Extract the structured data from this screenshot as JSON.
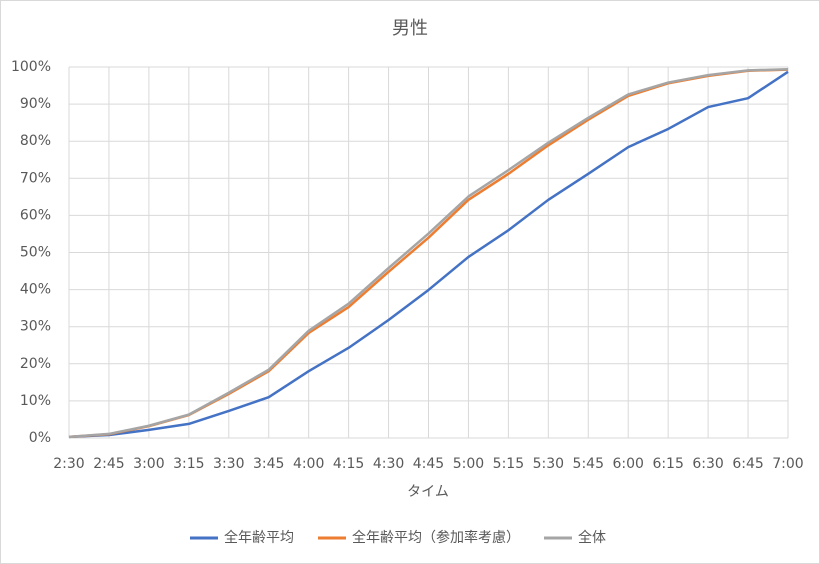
{
  "chart_data": {
    "type": "line",
    "title": "男性",
    "x_label": "タイム",
    "categories": [
      "2:30",
      "2:45",
      "3:00",
      "3:15",
      "3:30",
      "3:45",
      "4:00",
      "4:15",
      "4:30",
      "4:45",
      "5:00",
      "5:15",
      "5:30",
      "5:45",
      "6:00",
      "6:15",
      "6:30",
      "6:45",
      "7:00"
    ],
    "series": [
      {
        "name": "全年齢平均",
        "color": "#4472c4",
        "values": [
          0.3,
          0.8,
          2.2,
          3.8,
          7.3,
          11,
          18,
          24.3,
          31.8,
          39.9,
          48.8,
          56,
          64.2,
          71.2,
          78.4,
          83.3,
          89.2,
          91.6,
          98.7
        ]
      },
      {
        "name": "全年齢平均（参加率考慮）",
        "color": "#ed7d31",
        "values": [
          0.3,
          1,
          3.2,
          6.2,
          11.9,
          18,
          28.3,
          35.3,
          44.8,
          54,
          64.2,
          71.2,
          78.9,
          85.8,
          92.2,
          95.6,
          97.6,
          99,
          99.3
        ]
      },
      {
        "name": "全体",
        "color": "#a5a5a5",
        "values": [
          0.3,
          1.1,
          3.3,
          6.3,
          12.2,
          18.4,
          28.9,
          36.2,
          45.8,
          55.1,
          65.1,
          72.2,
          79.6,
          86.3,
          92.6,
          95.8,
          97.8,
          99.1,
          99.4
        ]
      }
    ],
    "ylim": [
      0,
      100
    ],
    "yticks": [
      {
        "value": 0,
        "label": "0%"
      },
      {
        "value": 10,
        "label": "10%"
      },
      {
        "value": 20,
        "label": "20%"
      },
      {
        "value": 30,
        "label": "30%"
      },
      {
        "value": 40,
        "label": "40%"
      },
      {
        "value": 50,
        "label": "50%"
      },
      {
        "value": 60,
        "label": "60%"
      },
      {
        "value": 70,
        "label": "70%"
      },
      {
        "value": 80,
        "label": "80%"
      },
      {
        "value": 90,
        "label": "90%"
      },
      {
        "value": 100,
        "label": "100%"
      }
    ],
    "grid": true,
    "legend": "bottom"
  }
}
